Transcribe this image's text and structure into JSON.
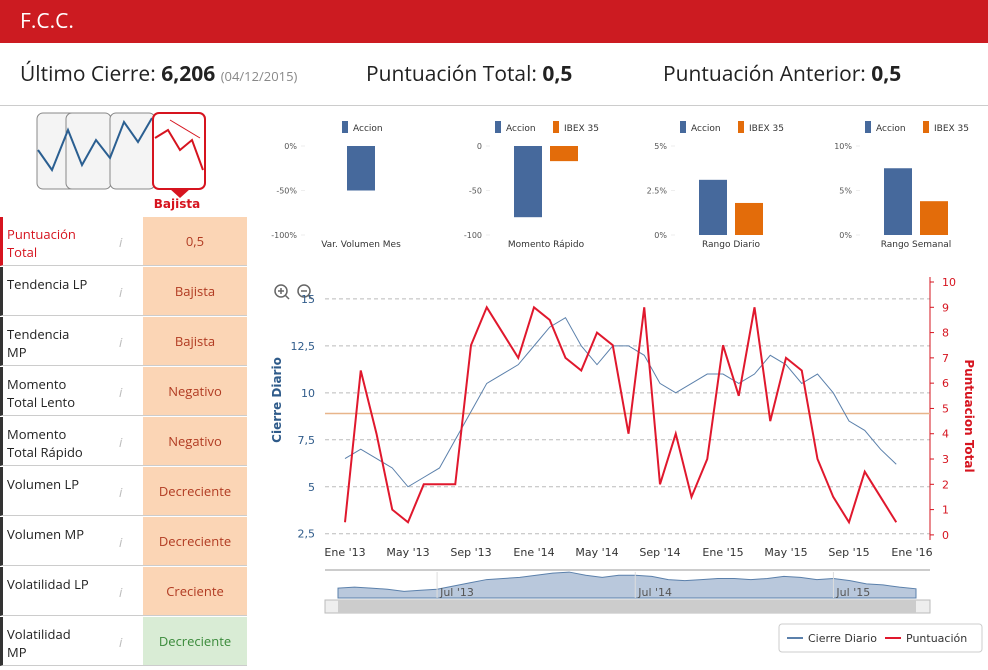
{
  "header": {
    "title": "F.C.C."
  },
  "summary": [
    {
      "label": "Último Cierre:",
      "value": "6,206",
      "date": "(04/12/2015)"
    },
    {
      "label": "Puntuación Total:",
      "value": "0,5"
    },
    {
      "label": "Puntuación Anterior:",
      "value": "0,5"
    }
  ],
  "signal": {
    "label": "Bajista"
  },
  "indicators": [
    [
      "Puntuación Total",
      "0,5"
    ],
    [
      "Tendencia LP",
      "Bajista"
    ],
    [
      "Tendencia MP",
      "Bajista"
    ],
    [
      "Momento Total Lento",
      "Negativo"
    ],
    [
      "Momento Total Rápido",
      "Negativo"
    ],
    [
      "Volumen LP",
      "Decreciente"
    ],
    [
      "Volumen MP",
      "Decreciente"
    ],
    [
      "Volatilidad LP",
      "Creciente"
    ],
    [
      "Volatilidad MP",
      "Decreciente"
    ]
  ],
  "info_icon": "i",
  "chart_data": [
    {
      "type": "bar",
      "x_label": "Var. Volumen Mes",
      "series": [
        {
          "name": "Accion",
          "color": "#46699c",
          "values": [
            -50
          ]
        }
      ],
      "ylim": [
        -100,
        0
      ],
      "yticks": [
        {
          "value": 0,
          "label": "0%"
        },
        {
          "value": -50,
          "label": "-50%"
        },
        {
          "value": -100,
          "label": "-100%"
        }
      ]
    },
    {
      "type": "bar",
      "x_label": "Momento Rápido",
      "series": [
        {
          "name": "Accion",
          "color": "#46699c",
          "values": [
            -80
          ]
        },
        {
          "name": "IBEX 35",
          "color": "#e36c0a",
          "values": [
            -17
          ]
        }
      ],
      "ylim": [
        -100,
        0
      ],
      "yticks": [
        0,
        -50,
        -100
      ]
    },
    {
      "type": "bar",
      "x_label": "Rango Diario",
      "series": [
        {
          "name": "Accion",
          "color": "#46699c",
          "values": [
            3.1
          ]
        },
        {
          "name": "IBEX 35",
          "color": "#e36c0a",
          "values": [
            1.8
          ]
        }
      ],
      "ylim": [
        0,
        5
      ],
      "yticks": [
        {
          "value": 0,
          "label": "0%"
        },
        {
          "value": 2.5,
          "label": "2.5%"
        },
        {
          "value": 5,
          "label": "5%"
        }
      ]
    },
    {
      "type": "bar",
      "x_label": "Rango Semanal",
      "series": [
        {
          "name": "Accion",
          "color": "#46699c",
          "values": [
            7.5
          ]
        },
        {
          "name": "IBEX 35",
          "color": "#e36c0a",
          "values": [
            3.8
          ]
        }
      ],
      "ylim": [
        0,
        10
      ],
      "yticks": [
        {
          "value": 0,
          "label": "0%"
        },
        {
          "value": 5,
          "label": "5%"
        },
        {
          "value": 10,
          "label": "10%"
        }
      ]
    },
    {
      "type": "line",
      "y_label": "Cierre Diario",
      "y2_label": "Puntuacion Total",
      "x": [
        "2013-01",
        "2013-02",
        "2013-03",
        "2013-04",
        "2013-05",
        "2013-06",
        "2013-07",
        "2013-08",
        "2013-09",
        "2013-10",
        "2013-11",
        "2013-12",
        "2014-01",
        "2014-02",
        "2014-03",
        "2014-04",
        "2014-05",
        "2014-06",
        "2014-07",
        "2014-08",
        "2014-09",
        "2014-10",
        "2014-11",
        "2014-12",
        "2015-01",
        "2015-02",
        "2015-03",
        "2015-04",
        "2015-05",
        "2015-06",
        "2015-07",
        "2015-08",
        "2015-09",
        "2015-10",
        "2015-11",
        "2015-12"
      ],
      "xticks": [
        {
          "value": "2013-01",
          "label": "Ene '13"
        },
        {
          "value": "2013-05",
          "label": "May '13"
        },
        {
          "value": "2013-09",
          "label": "Sep '13"
        },
        {
          "value": "2014-01",
          "label": "Ene '14"
        },
        {
          "value": "2014-05",
          "label": "May '14"
        },
        {
          "value": "2014-09",
          "label": "Sep '14"
        },
        {
          "value": "2015-01",
          "label": "Ene '15"
        },
        {
          "value": "2015-05",
          "label": "May '15"
        },
        {
          "value": "2015-09",
          "label": "Sep '15"
        },
        {
          "value": "2016-01",
          "label": "Ene '16"
        }
      ],
      "series": [
        {
          "name": "Cierre Diario",
          "color": "#5b80ab",
          "values": [
            6.5,
            7,
            6.5,
            6,
            5,
            5.5,
            6,
            7.5,
            9,
            10.5,
            11,
            11.5,
            12.5,
            13.5,
            14,
            12.5,
            11.5,
            12.5,
            12.5,
            12,
            10.5,
            10,
            10.5,
            11,
            11,
            10.5,
            11,
            12,
            11.5,
            10.5,
            11,
            10,
            8.5,
            8,
            7,
            6.2
          ]
        },
        {
          "name": "Puntuación",
          "color": "#e0182d",
          "axis": "y2",
          "values": [
            0.5,
            6.5,
            4,
            1,
            0.5,
            2,
            2,
            2,
            7.5,
            9,
            8,
            7,
            9,
            8.5,
            7,
            6.5,
            8,
            7.5,
            4,
            9,
            2,
            4,
            1.5,
            3,
            7.5,
            5.5,
            9,
            4.5,
            7,
            6.5,
            3,
            1.5,
            0.5,
            2.5,
            1.5,
            0.5
          ]
        }
      ],
      "ylim": [
        1.9,
        15.9
      ],
      "yticks": [
        {
          "value": 2.5,
          "label": "2,5"
        },
        5,
        {
          "value": 7.5,
          "label": "7,5"
        },
        10,
        {
          "value": 12.5,
          "label": "12,5"
        },
        15
      ],
      "y2lim": [
        -0.4,
        10
      ],
      "y2ticks": [
        0,
        1,
        2,
        3,
        4,
        5,
        6,
        7,
        8,
        9,
        10
      ],
      "y2_reference": 4.8,
      "grid": true,
      "navigator_ticks": [
        {
          "value": "2013-07",
          "label": "Jul '13"
        },
        {
          "value": "2014-07",
          "label": "Jul '14"
        },
        {
          "value": "2015-07",
          "label": "Jul '15"
        }
      ]
    }
  ]
}
